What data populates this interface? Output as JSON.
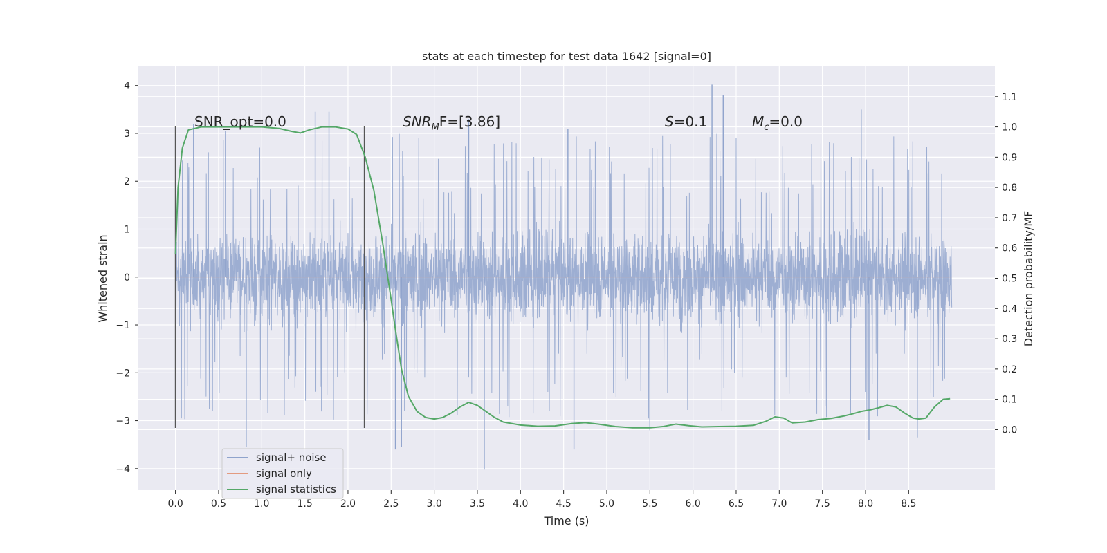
{
  "chart_data": {
    "type": "line",
    "title": "stats at each timestep for test data 1642 [signal=0]",
    "xlabel": "Time (s)",
    "ylabel_left": "Whitened strain",
    "ylabel_right": "Detection probability/MF",
    "xlim": [
      -0.43,
      9.5
    ],
    "ylim_left": [
      -4.45,
      4.4
    ],
    "ylim_right": [
      -0.2,
      1.2
    ],
    "xticks": [
      0.0,
      0.5,
      1.0,
      1.5,
      2.0,
      2.5,
      3.0,
      3.5,
      4.0,
      4.5,
      5.0,
      5.5,
      6.0,
      6.5,
      7.0,
      7.5,
      8.0,
      8.5
    ],
    "xtick_labels": [
      "0.0",
      "0.5",
      "1.0",
      "1.5",
      "2.0",
      "2.5",
      "3.0",
      "3.5",
      "4.0",
      "4.5",
      "5.0",
      "5.5",
      "6.0",
      "6.5",
      "7.0",
      "7.5",
      "8.0",
      "8.5"
    ],
    "yticks_left": [
      -4,
      -3,
      -2,
      -1,
      0,
      1,
      2,
      3,
      4
    ],
    "ytick_labels_left": [
      "−4",
      "−3",
      "−2",
      "−1",
      "0",
      "1",
      "2",
      "3",
      "4"
    ],
    "yticks_right": [
      0.0,
      0.1,
      0.2,
      0.3,
      0.4,
      0.5,
      0.6,
      0.7,
      0.8,
      0.9,
      1.0,
      1.1
    ],
    "ytick_labels_right": [
      "0.0",
      "0.1",
      "0.2",
      "0.3",
      "0.4",
      "0.5",
      "0.6",
      "0.7",
      "0.8",
      "0.9",
      "1.0",
      "1.1"
    ],
    "grid": true,
    "vlines": [
      {
        "x": 0.0,
        "ymin": -3.15,
        "ymax": 3.15
      },
      {
        "x": 2.19,
        "ymin": -3.15,
        "ymax": 3.15
      }
    ],
    "annotations": {
      "snr_opt": "SNR_opt=0.0",
      "snr_mf_base": "SNR",
      "snr_mf_sub": "M",
      "snr_mf_rest": "F=[3.86]",
      "s_var": "S",
      "s_rest": "=0.1",
      "mc_base": "M",
      "mc_sub": "c",
      "mc_rest": "=0.0"
    },
    "legend": [
      "signal+ noise",
      "signal only",
      "signal statistics"
    ],
    "legend_position": "lower-left",
    "series": [
      {
        "name": "signal+ noise",
        "axis": "left",
        "color": "#8fa3cc",
        "style": "dense noise trace",
        "x_range": [
          0.0,
          9.0
        ],
        "envelope": {
          "typical_abs": 1.3,
          "peak_max": 4.05,
          "peak_min": -4.02
        },
        "notable_peaks": [
          {
            "x": 0.21,
            "y": 3.2
          },
          {
            "x": 0.58,
            "y": 3.05
          },
          {
            "x": 0.82,
            "y": -3.55
          },
          {
            "x": 1.62,
            "y": 3.45
          },
          {
            "x": 1.78,
            "y": 3.45
          },
          {
            "x": 2.55,
            "y": -3.6
          },
          {
            "x": 2.62,
            "y": -3.55
          },
          {
            "x": 3.4,
            "y": 3.3
          },
          {
            "x": 3.58,
            "y": -4.02
          },
          {
            "x": 4.55,
            "y": 3.1
          },
          {
            "x": 4.62,
            "y": -3.6
          },
          {
            "x": 5.5,
            "y": -3.2
          },
          {
            "x": 6.22,
            "y": 4.02
          },
          {
            "x": 6.35,
            "y": 3.8
          },
          {
            "x": 7.95,
            "y": 3.5
          },
          {
            "x": 8.04,
            "y": -3.4
          },
          {
            "x": 8.6,
            "y": -3.35
          }
        ]
      },
      {
        "name": "signal only",
        "axis": "left",
        "color": "#e39b80",
        "x": [
          0.0,
          9.0
        ],
        "y": [
          0.0,
          0.0
        ]
      },
      {
        "name": "signal statistics",
        "axis": "right",
        "color": "#55a868",
        "x": [
          0.0,
          0.03,
          0.08,
          0.15,
          0.3,
          0.5,
          0.8,
          1.0,
          1.2,
          1.35,
          1.45,
          1.55,
          1.7,
          1.85,
          2.0,
          2.1,
          2.2,
          2.3,
          2.4,
          2.5,
          2.55,
          2.62,
          2.7,
          2.8,
          2.9,
          3.0,
          3.1,
          3.2,
          3.3,
          3.4,
          3.5,
          3.6,
          3.7,
          3.8,
          4.0,
          4.2,
          4.4,
          4.6,
          4.75,
          4.9,
          5.1,
          5.3,
          5.5,
          5.65,
          5.8,
          5.95,
          6.1,
          6.3,
          6.5,
          6.7,
          6.85,
          6.95,
          7.05,
          7.15,
          7.3,
          7.45,
          7.6,
          7.75,
          7.85,
          7.95,
          8.05,
          8.15,
          8.25,
          8.35,
          8.45,
          8.55,
          8.62,
          8.7,
          8.8,
          8.9,
          8.98
        ],
        "y": [
          0.58,
          0.8,
          0.93,
          0.99,
          1.0,
          1.0,
          1.0,
          1.0,
          0.995,
          0.985,
          0.98,
          0.99,
          1.0,
          1.0,
          0.993,
          0.975,
          0.9,
          0.79,
          0.62,
          0.43,
          0.33,
          0.2,
          0.11,
          0.06,
          0.04,
          0.035,
          0.04,
          0.055,
          0.075,
          0.09,
          0.08,
          0.06,
          0.04,
          0.025,
          0.015,
          0.011,
          0.012,
          0.02,
          0.023,
          0.018,
          0.01,
          0.006,
          0.006,
          0.01,
          0.018,
          0.013,
          0.009,
          0.01,
          0.011,
          0.014,
          0.028,
          0.042,
          0.038,
          0.022,
          0.025,
          0.033,
          0.037,
          0.045,
          0.052,
          0.06,
          0.065,
          0.072,
          0.08,
          0.075,
          0.055,
          0.038,
          0.035,
          0.038,
          0.075,
          0.1,
          0.102
        ]
      }
    ]
  }
}
